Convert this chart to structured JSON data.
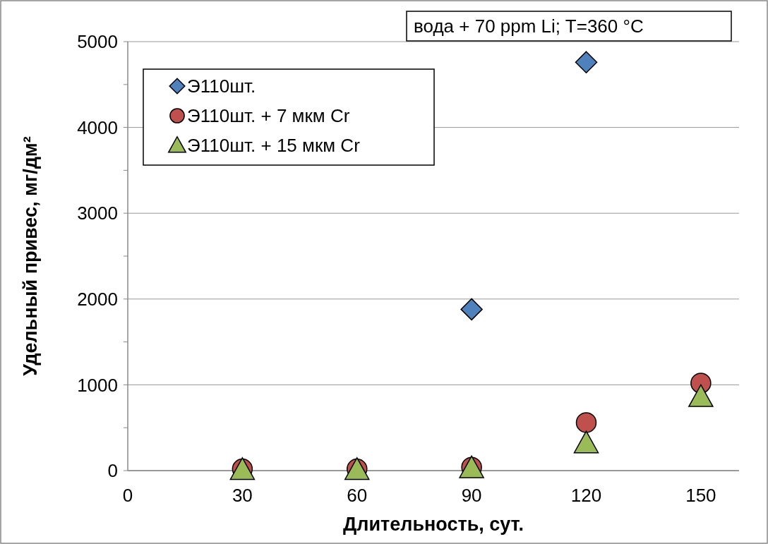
{
  "chart_data": {
    "type": "scatter",
    "xlabel": "Длительность, сут.",
    "ylabel": "Удельный привес, мг/дм²",
    "annotations": [
      "вода + 70 ppm Li; T=360 °C"
    ],
    "xlim": [
      0,
      160
    ],
    "xticks": [
      0,
      30,
      60,
      90,
      120,
      150
    ],
    "ylim": [
      0,
      5000
    ],
    "yticks": [
      0,
      {
        "value": 500,
        "label": null
      },
      1000,
      {
        "value": 1500,
        "label": null
      },
      2000,
      {
        "value": 2500,
        "label": null
      },
      3000,
      {
        "value": 3500,
        "label": null
      },
      4000,
      {
        "value": 4500,
        "label": null
      },
      5000
    ],
    "grid": "y",
    "legend": "top left",
    "series": [
      {
        "name": "Э110шт.",
        "color": "#4f81bd",
        "marker": "diamond",
        "x": [
          90,
          120
        ],
        "values": [
          1880,
          4760
        ]
      },
      {
        "name": "Э110шт. + 7 мкм Cr",
        "color": "#c0504d",
        "marker": "circle",
        "x": [
          30,
          60,
          90,
          120,
          150
        ],
        "values": [
          20,
          20,
          40,
          560,
          1020
        ]
      },
      {
        "name": "Э110шт. + 15 мкм Cr",
        "color": "#9bbb59",
        "marker": "triangle",
        "x": [
          30,
          60,
          90,
          120,
          150
        ],
        "values": [
          10,
          10,
          30,
          320,
          860
        ]
      }
    ]
  }
}
